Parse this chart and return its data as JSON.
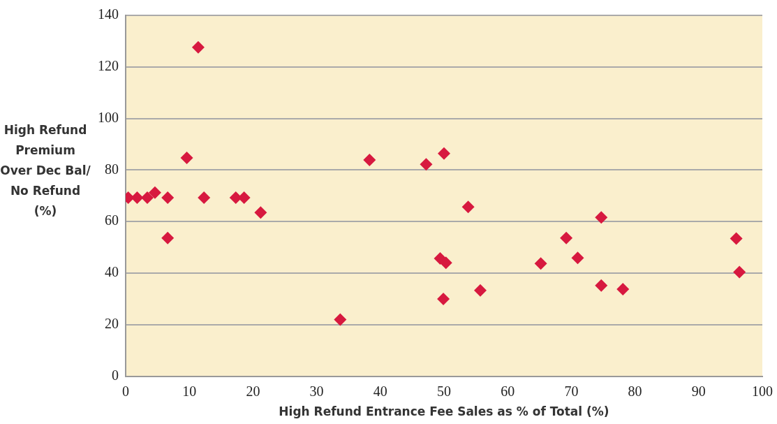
{
  "chart_data": {
    "type": "scatter",
    "xlabel": "High Refund Entrance Fee Sales as % of Total (%)",
    "ylabel": "High Refund Premium Over Dec Bal/ No Refund (%)",
    "x": [
      0.4,
      1.8,
      3.4,
      4.6,
      6.6,
      6.6,
      9.6,
      11.4,
      12.3,
      17.3,
      18.6,
      21.2,
      33.7,
      38.3,
      47.2,
      50,
      53.8,
      49.4,
      50.3,
      49.9,
      55.7,
      65.2,
      69.2,
      71,
      74.7,
      74.7,
      78.1,
      95.9,
      96.4
    ],
    "values": [
      69.3,
      69.3,
      69.3,
      71.2,
      69.3,
      53.6,
      84.7,
      127.6,
      69.3,
      69.3,
      69.3,
      63.5,
      22,
      83.9,
      82.2,
      86.4,
      65.7,
      45.7,
      44,
      30,
      33.3,
      43.7,
      53.6,
      45.9,
      61.6,
      35.2,
      33.8,
      53.4,
      40.4
    ],
    "color": "#d7193f",
    "marker": "diamond",
    "xlim": [
      0,
      100
    ],
    "xticks": [
      0,
      10,
      20,
      30,
      40,
      50,
      60,
      70,
      80,
      90,
      100
    ],
    "ylim": [
      0,
      140
    ],
    "yticks": [
      0,
      20,
      40,
      60,
      80,
      100,
      120,
      140
    ],
    "grid": "y"
  }
}
